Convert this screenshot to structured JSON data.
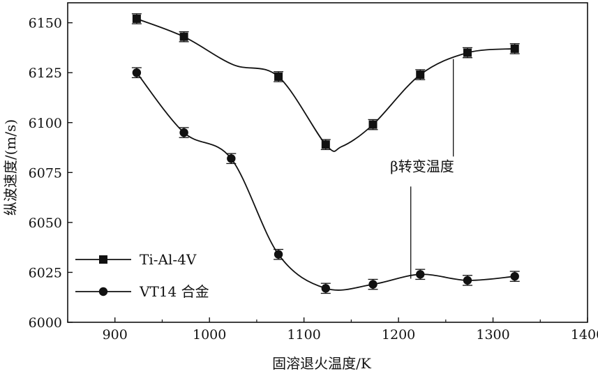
{
  "chart_data": {
    "type": "line",
    "title": "",
    "xlabel": "固溶退火温度/K",
    "ylabel": "纵波速度/(m/s)",
    "xlim": [
      850,
      1400
    ],
    "ylim": [
      6000,
      6160
    ],
    "xticks": [
      900,
      1000,
      1100,
      1200,
      1300,
      1400
    ],
    "yticks": [
      6000,
      6025,
      6050,
      6075,
      6100,
      6125,
      6150
    ],
    "grid": false,
    "legend_position": "bottom-left",
    "series": [
      {
        "name": "Ti-Al-4V",
        "marker": "square",
        "x": [
          923,
          973,
          1073,
          1123,
          1173,
          1223,
          1273,
          1323
        ],
        "y": [
          6152,
          6143,
          6123,
          6089,
          6099,
          6124,
          6135,
          6137
        ],
        "error": 2.5,
        "curve_x": [
          923,
          973,
          1025,
          1073,
          1123,
          1140,
          1173,
          1223,
          1273,
          1323
        ],
        "curve_y": [
          6152,
          6143,
          6129,
          6123,
          6089,
          6088,
          6099,
          6124,
          6135,
          6137
        ]
      },
      {
        "name": "VT14 合金",
        "marker": "circle",
        "x": [
          923,
          973,
          1023,
          1073,
          1123,
          1173,
          1223,
          1273,
          1323
        ],
        "y": [
          6125,
          6095,
          6082,
          6034,
          6017,
          6019,
          6024,
          6021,
          6023
        ],
        "error": 2.5,
        "curve_x": [
          923,
          973,
          1023,
          1073,
          1123,
          1173,
          1223,
          1273,
          1323
        ],
        "curve_y": [
          6125,
          6095,
          6082,
          6034,
          6017,
          6019,
          6024,
          6021,
          6023
        ]
      }
    ],
    "annotations": [
      {
        "text": "β转变温度",
        "points": [
          [
            1258,
            6135
          ],
          [
            1213,
            6025
          ]
        ],
        "label_at": [
          1225,
          6078
        ]
      }
    ]
  }
}
